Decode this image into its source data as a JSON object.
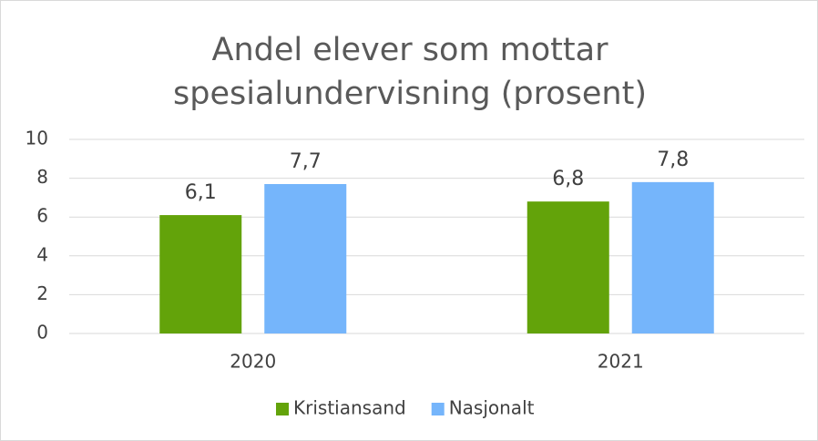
{
  "chart_data": {
    "type": "bar",
    "title": "Andel elever som mottar spesialundervisning (prosent)",
    "categories": [
      "2020",
      "2021"
    ],
    "series": [
      {
        "name": "Kristiansand",
        "color": "#63a30a",
        "values": [
          6.1,
          6.8
        ],
        "value_labels": [
          "6,1",
          "6,8"
        ]
      },
      {
        "name": "Nasjonalt",
        "color": "#75b5fb",
        "values": [
          7.7,
          7.8
        ],
        "value_labels": [
          "7,7",
          "7,8"
        ]
      }
    ],
    "ylim": [
      0,
      10
    ],
    "yticks": [
      0,
      2,
      4,
      6,
      8,
      10
    ],
    "grid": true,
    "legend": "bottom"
  }
}
